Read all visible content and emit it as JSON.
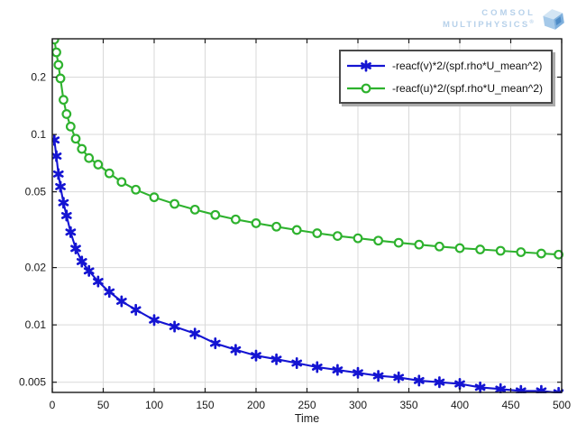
{
  "logo": {
    "line1": "COMSOL",
    "line2": "MULTIPHYSICS",
    "registered": "®"
  },
  "chart_data": {
    "type": "line",
    "title": "",
    "xlabel": "Time",
    "yscale": "log",
    "grid": true,
    "legend_position": "top-right",
    "xlim": [
      0,
      500
    ],
    "ylim": [
      0.00442,
      0.318
    ],
    "x_ticks": [
      0,
      50,
      100,
      150,
      200,
      250,
      300,
      350,
      400,
      450,
      500
    ],
    "x_tick_labels": [
      "0",
      "50",
      "100",
      "150",
      "200",
      "250",
      "300",
      "350",
      "400",
      "450",
      "500"
    ],
    "y_ticks": [
      0.2,
      0.1,
      0.05,
      0.02,
      0.01,
      0.005
    ],
    "y_tick_labels": [
      "0.2",
      "0.1",
      "0.05",
      "0.02",
      "0.01",
      "0.005"
    ],
    "x": [
      2,
      4,
      6,
      8,
      11,
      14,
      18,
      23,
      29,
      36,
      45,
      56,
      68,
      82,
      100,
      120,
      140,
      160,
      180,
      200,
      220,
      240,
      260,
      280,
      300,
      320,
      340,
      360,
      380,
      400,
      420,
      440,
      460,
      480,
      497
    ],
    "series": [
      {
        "name": "-reacf(v)*2/(spf.rho*U_mean^2)",
        "color": "#1414d2",
        "marker": "asterisk",
        "values": [
          0.0935,
          0.077,
          0.062,
          0.0532,
          0.0438,
          0.0375,
          0.0307,
          0.0252,
          0.0215,
          0.0192,
          0.0169,
          0.0149,
          0.0133,
          0.012,
          0.0106,
          0.0098,
          0.009,
          0.008,
          0.0074,
          0.0069,
          0.0066,
          0.0063,
          0.006,
          0.0058,
          0.0056,
          0.0054,
          0.0053,
          0.0051,
          0.005,
          0.0049,
          0.0047,
          0.0046,
          0.0045,
          0.0045,
          0.0044
        ]
      },
      {
        "name": "-reacf(u)*2/(spf.rho*U_mean^2)",
        "color": "#2eb22e",
        "marker": "circle",
        "values": [
          0.315,
          0.27,
          0.232,
          0.197,
          0.152,
          0.128,
          0.11,
          0.095,
          0.084,
          0.0752,
          0.0695,
          0.0625,
          0.0563,
          0.0513,
          0.0468,
          0.0432,
          0.0403,
          0.0378,
          0.0358,
          0.0342,
          0.0328,
          0.0315,
          0.0303,
          0.0293,
          0.0285,
          0.0277,
          0.027,
          0.0264,
          0.0258,
          0.0253,
          0.0249,
          0.0245,
          0.0241,
          0.0237,
          0.0234
        ]
      }
    ],
    "colors": {
      "grid": "#d9d9d9",
      "axis": "#1a1a1a"
    }
  }
}
